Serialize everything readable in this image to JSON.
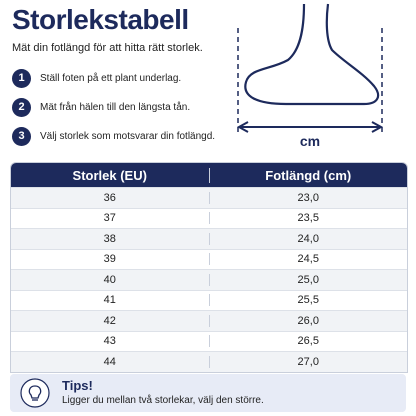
{
  "header": {
    "title": "Storlekstabell",
    "subtitle": "Mät din fotlängd för att hitta rätt storlek."
  },
  "steps": [
    {
      "number": "1",
      "text": "Ställ foten på ett plant underlag."
    },
    {
      "number": "2",
      "text": "Mät från hälen till den längsta tån."
    },
    {
      "number": "3",
      "text": "Välj storlek som motsvarar din fotlängd."
    }
  ],
  "illustration": {
    "unit": "cm"
  },
  "table": {
    "columns": [
      "Storlek (EU)",
      "Fotlängd (cm)"
    ],
    "rows": [
      [
        "36",
        "23,0"
      ],
      [
        "37",
        "23,5"
      ],
      [
        "38",
        "24,0"
      ],
      [
        "39",
        "24,5"
      ],
      [
        "40",
        "25,0"
      ],
      [
        "41",
        "25,5"
      ],
      [
        "42",
        "26,0"
      ],
      [
        "43",
        "26,5"
      ],
      [
        "44",
        "27,0"
      ]
    ]
  },
  "tip": {
    "title": "Tips!",
    "text": "Ligger du mellan två storlekar, välj den större."
  }
}
